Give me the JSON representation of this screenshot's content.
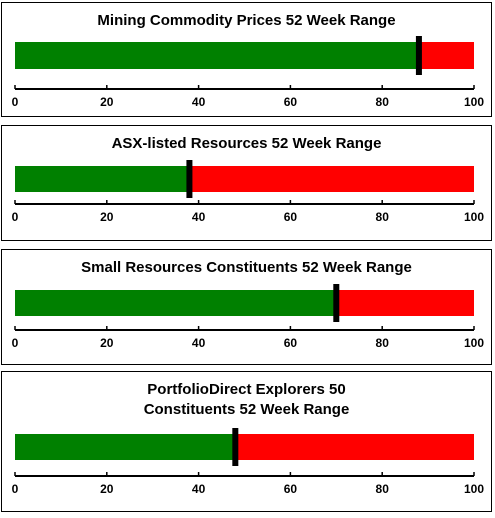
{
  "colors": {
    "below": "#008000",
    "above": "#ff0000",
    "marker": "#000000"
  },
  "chart_data": [
    {
      "type": "bar",
      "title": "Mining Commodity Prices 52 Week Range",
      "value": 88,
      "xlim": [
        0,
        100
      ],
      "ticks": [
        0,
        20,
        40,
        60,
        80,
        100
      ]
    },
    {
      "type": "bar",
      "title": "ASX-listed Resources 52 Week Range",
      "value": 38,
      "xlim": [
        0,
        100
      ],
      "ticks": [
        0,
        20,
        40,
        60,
        80,
        100
      ]
    },
    {
      "type": "bar",
      "title": "Small Resources Constituents 52 Week Range",
      "value": 70,
      "xlim": [
        0,
        100
      ],
      "ticks": [
        0,
        20,
        40,
        60,
        80,
        100
      ]
    },
    {
      "type": "bar",
      "title": "PortfolioDirect Explorers 50 Constituents 52 Week Range",
      "value": 48,
      "xlim": [
        0,
        100
      ],
      "ticks": [
        0,
        20,
        40,
        60,
        80,
        100
      ]
    }
  ]
}
